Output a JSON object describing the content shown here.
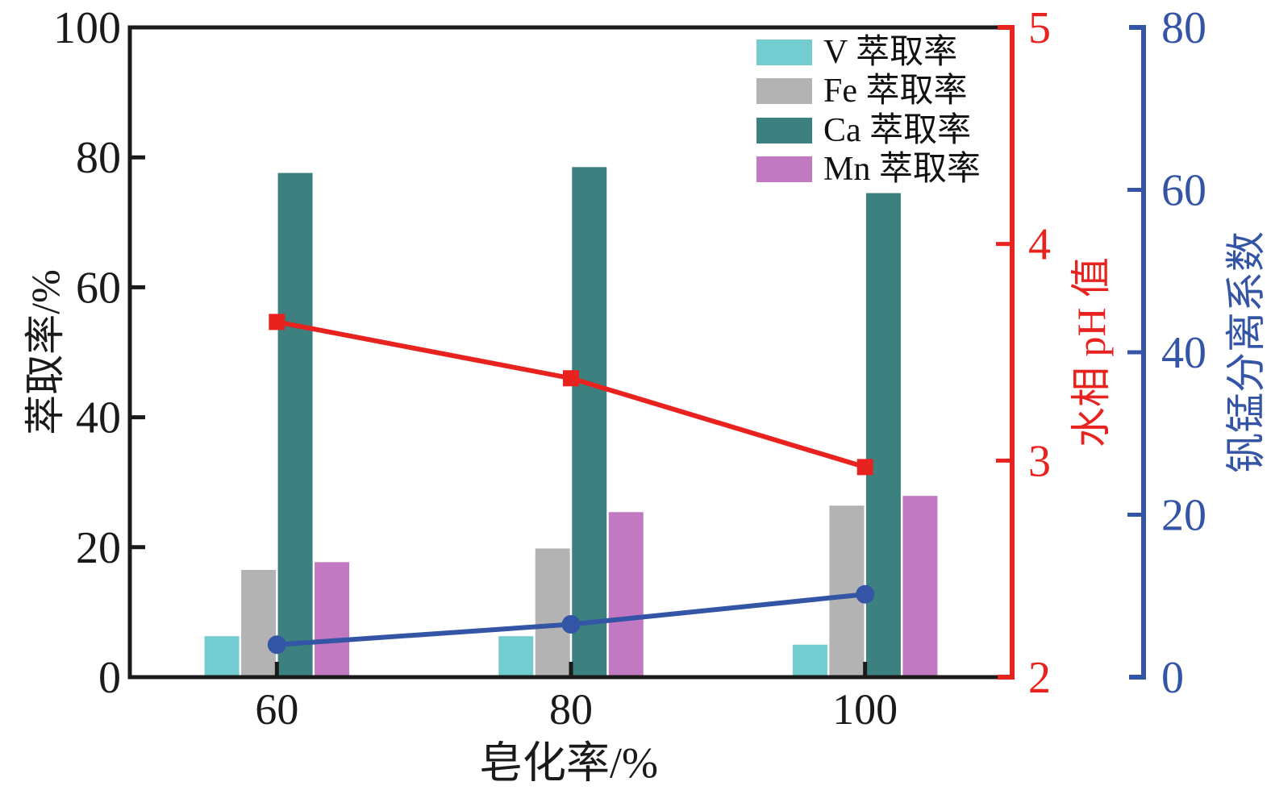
{
  "chart_data": {
    "type": "bar",
    "subtype": "grouped-bars-with-two-overlay-lines",
    "categories": [
      "60",
      "80",
      "100"
    ],
    "x_axis": {
      "label": "皂化率/%"
    },
    "left_axis": {
      "label": "萃取率/%",
      "min": 0,
      "max": 100,
      "ticks": [
        0,
        20,
        40,
        60,
        80,
        100
      ],
      "color": "#1a1a1a"
    },
    "right_axis_ph": {
      "label": "水相 pH 值",
      "min": 2,
      "max": 5,
      "ticks": [
        2,
        3,
        4,
        5
      ],
      "color": "#e8231f"
    },
    "right_axis_beta": {
      "label": "钒锰分离系数",
      "min": 0,
      "max": 80,
      "ticks": [
        0,
        20,
        40,
        60,
        80
      ],
      "color": "#3454a6"
    },
    "bar_series": [
      {
        "name": "V 萃取率",
        "color": "#73cdd0",
        "values": [
          6.3,
          6.3,
          5.0
        ]
      },
      {
        "name": "Fe 萃取率",
        "color": "#b3b3b3",
        "values": [
          16.5,
          19.8,
          26.4
        ]
      },
      {
        "name": "Ca 萃取率",
        "color": "#3c8080",
        "values": [
          77.6,
          78.5,
          74.5
        ]
      },
      {
        "name": "Mn 萃取率",
        "color": "#c17ac1",
        "values": [
          17.7,
          25.4,
          27.9
        ]
      }
    ],
    "line_series": [
      {
        "name": "水相 pH 值",
        "axis": "right_axis_ph",
        "color": "#e8231f",
        "marker": "square",
        "values": [
          3.64,
          3.38,
          2.97
        ]
      },
      {
        "name": "钒锰分离系数",
        "axis": "right_axis_beta",
        "color": "#3454a6",
        "marker": "circle",
        "values": [
          4.0,
          6.5,
          10.2
        ]
      }
    ],
    "legend": {
      "position": "top-right-inside",
      "entries": [
        "V 萃取率",
        "Fe 萃取率",
        "Ca 萃取率",
        "Mn 萃取率"
      ]
    },
    "grid": "off"
  }
}
